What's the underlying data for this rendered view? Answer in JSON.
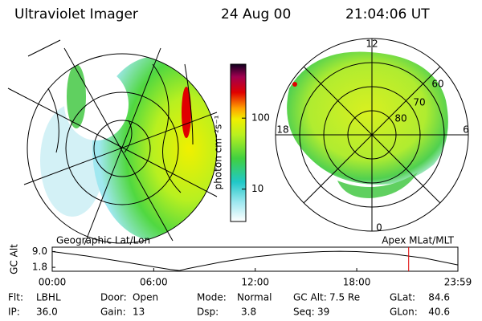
{
  "header": {
    "title": "Ultraviolet Imager",
    "date": "24 Aug 00",
    "time": "21:04:06 UT"
  },
  "colorbar": {
    "label": "photon cm⁻²s⁻¹",
    "scale": "log",
    "lim": [
      3.5,
      575
    ],
    "ticks": [
      10,
      100
    ]
  },
  "polar_labels": {
    "mlt": [
      "12",
      "18",
      "6",
      "0"
    ],
    "mlat": [
      "60",
      "70",
      "80"
    ]
  },
  "altitude_plot": {
    "title_left": "Geographic Lat/Lon",
    "title_right": "Apex MLat/MLT",
    "ylabel": "GC Alt",
    "x": [
      0,
      2,
      4,
      6,
      7,
      7.5,
      8,
      10,
      12,
      14,
      16,
      17,
      18,
      20,
      22,
      23.98
    ],
    "values": [
      9.0,
      7.0,
      4.6,
      2.0,
      0.8,
      0.3,
      1.2,
      4.2,
      6.6,
      8.2,
      9.0,
      9.1,
      9.0,
      8.0,
      6.0,
      2.9
    ],
    "xlim": [
      0,
      23.98
    ],
    "ylim": [
      0,
      11
    ],
    "xticks": [
      {
        "value": 0,
        "label": "00:00"
      },
      {
        "value": 6,
        "label": "06:00"
      },
      {
        "value": 12,
        "label": "12:00"
      },
      {
        "value": 18,
        "label": "18:00"
      },
      {
        "value": 23.98,
        "label": "23:59"
      }
    ],
    "yticks": [
      {
        "value": 9,
        "label": "9.0"
      },
      {
        "value": 1.8,
        "label": "1.8"
      }
    ],
    "marker": 21.07,
    "marker_color": "#e00000",
    "line_color": "#000000"
  },
  "footer": {
    "rows": [
      [
        {
          "label": "Flt:",
          "value": "LBHL"
        },
        {
          "label": "Door:",
          "value": "Open"
        },
        {
          "label": "Mode:",
          "value": "Normal"
        },
        {
          "label": "GC Alt:",
          "value": "7.5 Re"
        },
        {
          "label": "GLat:",
          "value": "84.6"
        }
      ],
      [
        {
          "label": "IP:",
          "value": "36.0"
        },
        {
          "label": "Gain:",
          "value": "13"
        },
        {
          "label": "Dsp:",
          "value": "3.8"
        },
        {
          "label": "Seq:",
          "value": "39"
        },
        {
          "label": "GLon:",
          "value": "40.6"
        }
      ]
    ]
  }
}
